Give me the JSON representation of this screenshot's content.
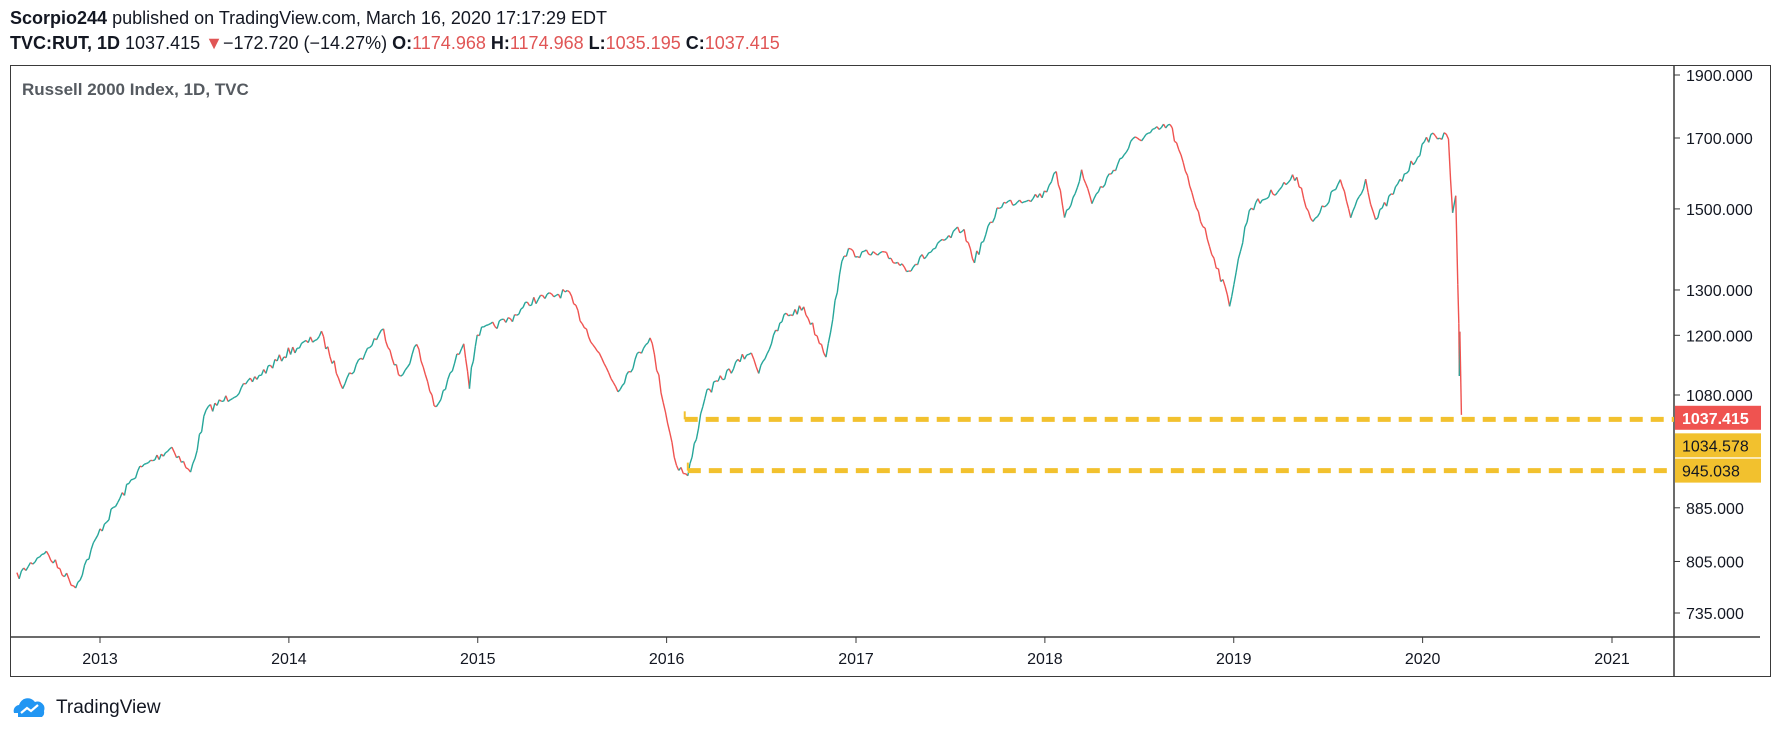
{
  "header": {
    "author": "Scorpio244",
    "published_text": "published on TradingView.com, March 16, 2020 17:17:29 EDT",
    "symbol": "TVC:RUT, 1D",
    "last": "1037.415",
    "change_arrow": "▼",
    "change": "−172.720 (−14.27%)",
    "o_label": "O:",
    "o_value": "1174.968",
    "h_label": "H:",
    "h_value": "1174.968",
    "l_label": "L:",
    "l_value": "1035.195",
    "c_label": "C:",
    "c_value": "1037.415"
  },
  "footer": {
    "brand": "TradingView",
    "logo_icon": "tradingview-cloud-icon"
  },
  "colors": {
    "up": "#26a69a",
    "down": "#ef5350",
    "level": "#f2c12e",
    "last_badge": "#ef5350"
  },
  "chart_data": {
    "type": "line",
    "title": "Russell 2000 Index, 1D, TVC",
    "scale": "log",
    "x_ticks": [
      "2013",
      "2014",
      "2015",
      "2016",
      "2017",
      "2018",
      "2019",
      "2020",
      "2021"
    ],
    "y_ticks": [
      "1900.000",
      "1700.000",
      "1500.000",
      "1300.000",
      "1200.000",
      "1080.000",
      "885.000",
      "805.000",
      "735.000"
    ],
    "ylim": [
      700,
      1960
    ],
    "series": [
      {
        "x": [
          "2012-07-20",
          "2012-09-15",
          "2012-11-15",
          "2013-01-01",
          "2013-03-15",
          "2013-05-20",
          "2013-06-25",
          "2013-07-25",
          "2013-10-01",
          "2013-12-31",
          "2014-03-05",
          "2014-04-15",
          "2014-06-15",
          "2014-07-03",
          "2014-08-05",
          "2014-09-05",
          "2014-10-13",
          "2014-12-05",
          "2014-12-16",
          "2014-12-31",
          "2015-03-05",
          "2015-04-15",
          "2015-06-23",
          "2015-08-24",
          "2015-09-29",
          "2015-11-30",
          "2016-01-20",
          "2016-02-11",
          "2016-03-15",
          "2016-06-08",
          "2016-06-27",
          "2016-08-15",
          "2016-09-22",
          "2016-11-04",
          "2016-12-09",
          "2017-03-01",
          "2017-04-13",
          "2017-07-25",
          "2017-08-18",
          "2017-10-05",
          "2017-12-31",
          "2018-01-23",
          "2018-02-08",
          "2018-03-13",
          "2018-04-02",
          "2018-06-20",
          "2018-08-31",
          "2018-10-29",
          "2018-12-24",
          "2019-01-31",
          "2019-05-03",
          "2019-06-03",
          "2019-07-26",
          "2019-08-15",
          "2019-09-13",
          "2019-10-02",
          "2019-12-31",
          "2020-01-17",
          "2020-02-20",
          "2020-02-28",
          "2020-03-05",
          "2020-03-09",
          "2020-03-11",
          "2020-03-12",
          "2020-03-13",
          "2020-03-16"
        ],
        "y": [
          780,
          820,
          770,
          850,
          945,
          985,
          940,
          1050,
          1090,
          1165,
          1200,
          1100,
          1190,
          1210,
          1110,
          1180,
          1050,
          1190,
          1100,
          1205,
          1235,
          1275,
          1295,
          1160,
          1090,
          1200,
          955,
          935,
          1080,
          1165,
          1130,
          1240,
          1260,
          1160,
          1390,
          1380,
          1350,
          1450,
          1370,
          1510,
          1540,
          1610,
          1470,
          1600,
          1520,
          1690,
          1740,
          1475,
          1270,
          1500,
          1590,
          1460,
          1575,
          1480,
          1580,
          1470,
          1670,
          1710,
          1700,
          1480,
          1530,
          1310,
          1230,
          1120,
          1210,
          1037
        ]
      }
    ],
    "levels": [
      {
        "value": 1034.578,
        "label": "1034.578",
        "from": "2016-02-05"
      },
      {
        "value": 945.038,
        "label": "945.038",
        "from": "2016-02-11"
      }
    ],
    "last_value": {
      "value": 1037.415,
      "label": "1037.415"
    }
  }
}
